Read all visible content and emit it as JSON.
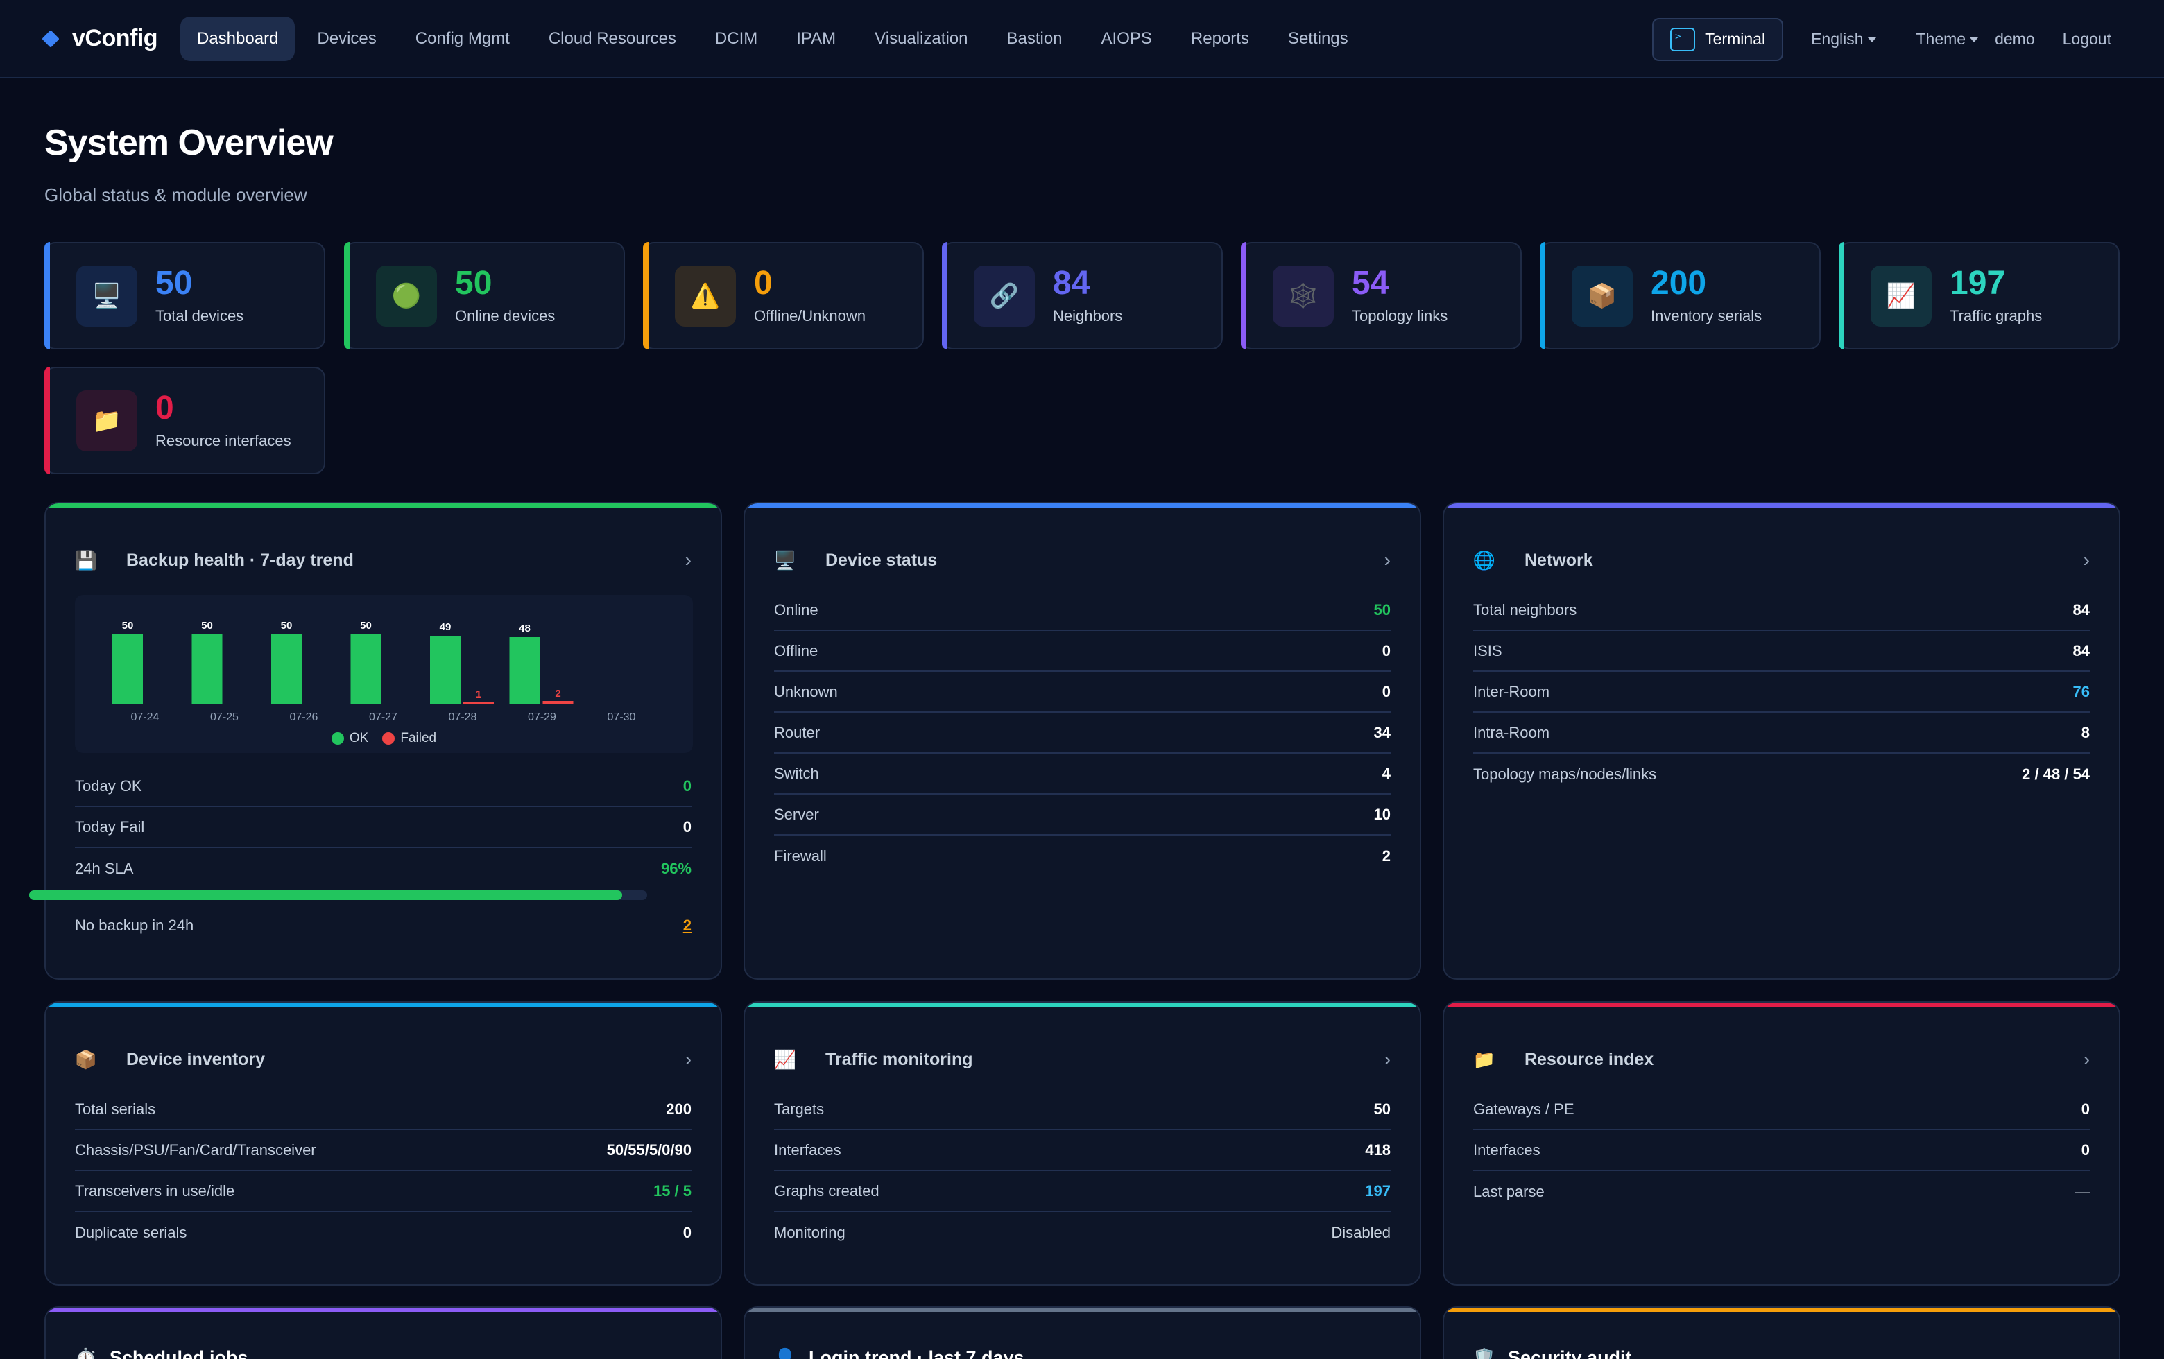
{
  "brand": {
    "name": "vConfig"
  },
  "nav": {
    "items": [
      "Dashboard",
      "Devices",
      "Config Mgmt",
      "Cloud Resources",
      "DCIM",
      "IPAM",
      "Visualization",
      "Bastion",
      "AIOPS",
      "Reports",
      "Settings"
    ],
    "active": "Dashboard",
    "terminal": "Terminal",
    "language": "English",
    "theme": "Theme",
    "user": "demo",
    "logout": "Logout"
  },
  "header": {
    "title": "System Overview",
    "subtitle": "Global status & module overview"
  },
  "stats": [
    {
      "value": "50",
      "label": "Total devices",
      "color": "#3b82f6",
      "icon": "monitor-icon"
    },
    {
      "value": "50",
      "label": "Online devices",
      "color": "#22c55e",
      "icon": "green-circle-icon"
    },
    {
      "value": "0",
      "label": "Offline/Unknown",
      "color": "#f59e0b",
      "icon": "warning-icon"
    },
    {
      "value": "84",
      "label": "Neighbors",
      "color": "#6366f1",
      "icon": "link-icon"
    },
    {
      "value": "54",
      "label": "Topology links",
      "color": "#8b5cf6",
      "icon": "network-icon"
    },
    {
      "value": "200",
      "label": "Inventory serials",
      "color": "#0ea5e9",
      "icon": "package-icon"
    },
    {
      "value": "197",
      "label": "Traffic graphs",
      "color": "#2dd4bf",
      "icon": "chart-icon"
    },
    {
      "value": "0",
      "label": "Resource interfaces",
      "color": "#e11d48",
      "icon": "folder-icon"
    }
  ],
  "backup": {
    "title": "Backup health · 7-day trend",
    "legend_ok": "OK",
    "legend_failed": "Failed",
    "rows": [
      {
        "k": "Today OK",
        "v": "0"
      },
      {
        "k": "Today Fail",
        "v": "0"
      },
      {
        "k": "24h SLA",
        "v": "96%"
      },
      {
        "k": "No backup in 24h",
        "v": "2"
      }
    ],
    "sla_fraction": 0.96
  },
  "chart_data": {
    "type": "bar",
    "categories": [
      "07-24",
      "07-25",
      "07-26",
      "07-27",
      "07-28",
      "07-29",
      "07-30"
    ],
    "series": [
      {
        "name": "OK",
        "values": [
          50,
          50,
          50,
          50,
          49,
          48,
          0
        ],
        "color": "#22c55e"
      },
      {
        "name": "Failed",
        "values": [
          0,
          0,
          0,
          0,
          1,
          2,
          0
        ],
        "color": "#ef4444"
      }
    ]
  },
  "device_status": {
    "title": "Device status",
    "rows": [
      {
        "k": "Online",
        "v": "50"
      },
      {
        "k": "Offline",
        "v": "0"
      },
      {
        "k": "Unknown",
        "v": "0"
      },
      {
        "k": "Router",
        "v": "34"
      },
      {
        "k": "Switch",
        "v": "4"
      },
      {
        "k": "Server",
        "v": "10"
      },
      {
        "k": "Firewall",
        "v": "2"
      }
    ]
  },
  "network": {
    "title": "Network",
    "rows": [
      {
        "k": "Total neighbors",
        "v": "84"
      },
      {
        "k": "ISIS",
        "v": "84"
      },
      {
        "k": "Inter-Room",
        "v": "76"
      },
      {
        "k": "Intra-Room",
        "v": "8"
      },
      {
        "k": "Topology maps/nodes/links",
        "v": "2 / 48 / 54"
      }
    ]
  },
  "inventory": {
    "title": "Device inventory",
    "rows": [
      {
        "k": "Total serials",
        "v": "200"
      },
      {
        "k": "Chassis/PSU/Fan/Card/Transceiver",
        "v": "50/55/5/0/90"
      },
      {
        "k": "Transceivers in use/idle",
        "v": "15 / 5"
      },
      {
        "k": "Duplicate serials",
        "v": "0"
      }
    ]
  },
  "traffic": {
    "title": "Traffic monitoring",
    "rows": [
      {
        "k": "Targets",
        "v": "50"
      },
      {
        "k": "Interfaces",
        "v": "418"
      },
      {
        "k": "Graphs created",
        "v": "197"
      },
      {
        "k": "Monitoring",
        "v": "Disabled"
      }
    ]
  },
  "resource": {
    "title": "Resource index",
    "rows": [
      {
        "k": "Gateways / PE",
        "v": "0"
      },
      {
        "k": "Interfaces",
        "v": "0"
      },
      {
        "k": "Last parse",
        "v": "—"
      }
    ]
  },
  "bottom_panels": {
    "scheduled": "Scheduled jobs",
    "login": "Login trend · last 7 days",
    "security": "Security audit"
  },
  "colors": {
    "backup_accent": "#22c55e",
    "device_accent": "#3b82f6",
    "network_accent": "#6366f1",
    "inventory_accent": "#0ea5e9",
    "traffic_accent": "#2dd4bf",
    "resource_accent": "#e11d48",
    "scheduled_accent": "#8b5cf6",
    "login_accent": "#64748b",
    "security_accent": "#f59e0b"
  }
}
